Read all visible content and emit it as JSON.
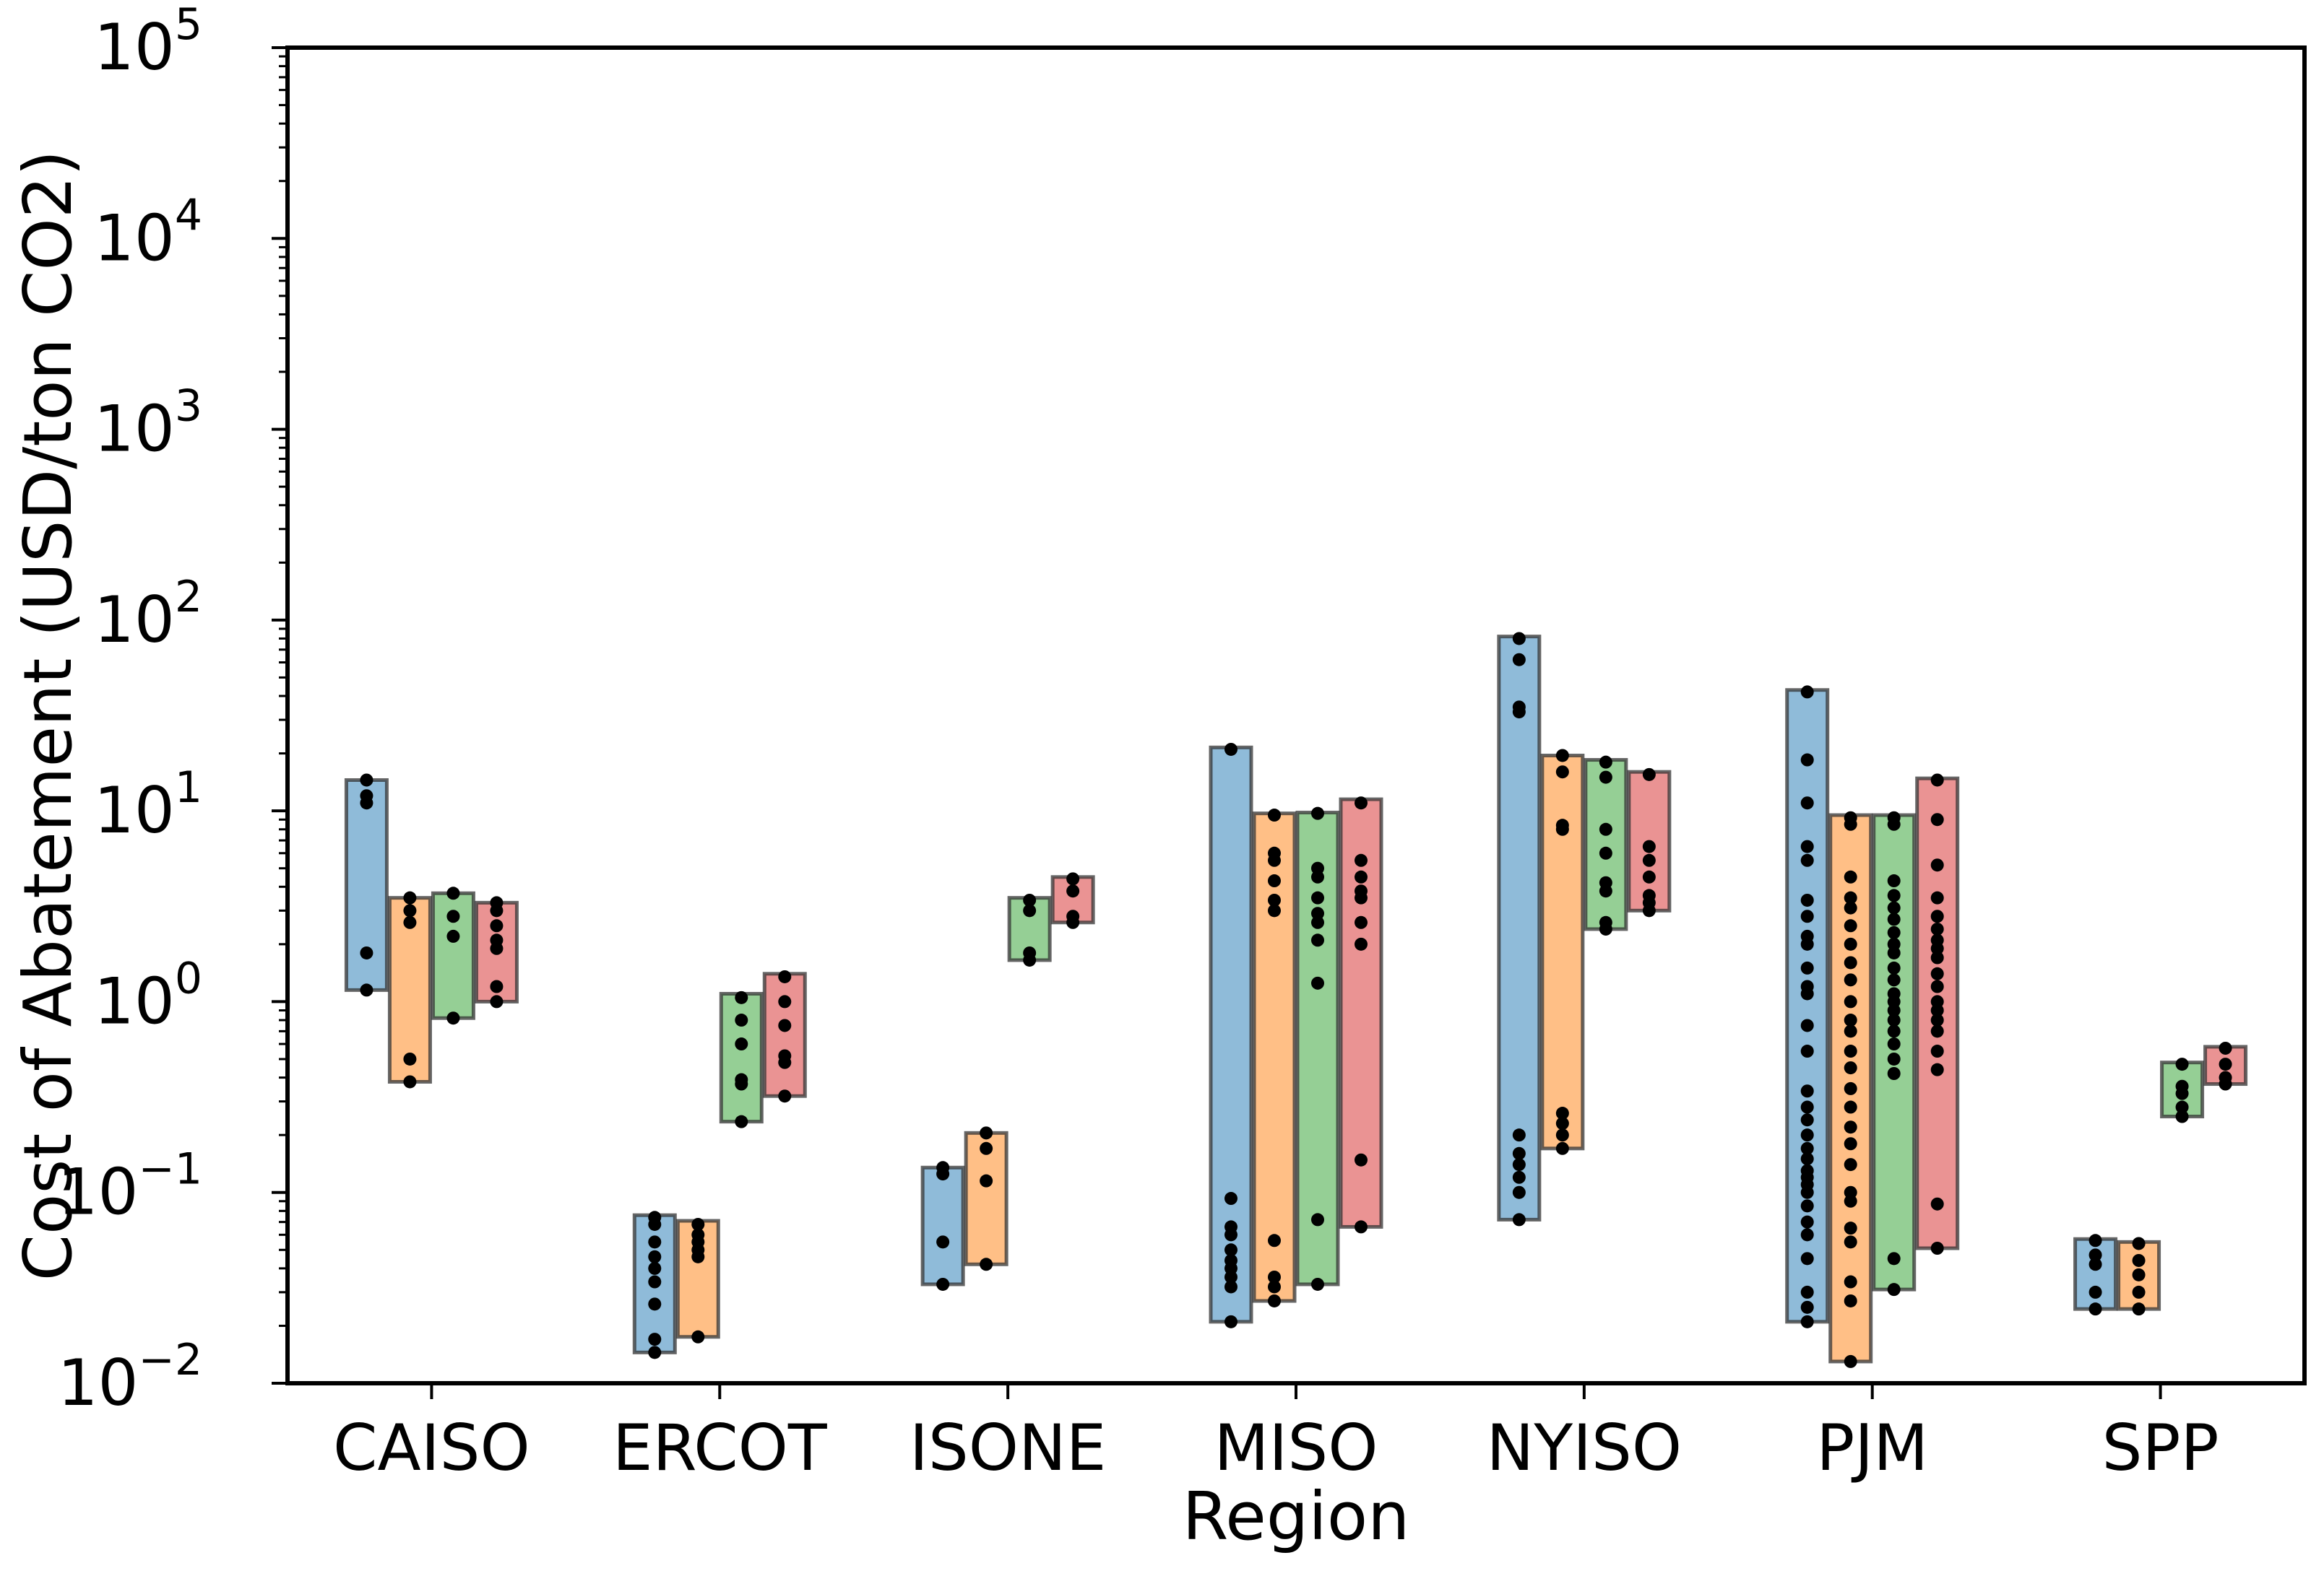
{
  "chart_data": {
    "type": "range-bar-strip",
    "title": "",
    "xlabel": "Region",
    "ylabel": "Cost of Abatement (USD/ton CO2)",
    "yscale": "log",
    "ylim": [
      0.01,
      100000
    ],
    "yticks": [
      {
        "base": "10",
        "exp": "−2",
        "value": 0.01
      },
      {
        "base": "10",
        "exp": "−1",
        "value": 0.1
      },
      {
        "base": "10",
        "exp": "0",
        "value": 1
      },
      {
        "base": "10",
        "exp": "1",
        "value": 10
      },
      {
        "base": "10",
        "exp": "2",
        "value": 100
      },
      {
        "base": "10",
        "exp": "3",
        "value": 1000
      },
      {
        "base": "10",
        "exp": "4",
        "value": 10000
      },
      {
        "base": "10",
        "exp": "5",
        "value": 100000
      }
    ],
    "grid": false,
    "series_colors": [
      "#1f77b4",
      "#ff7f0e",
      "#2ca02c",
      "#d62728"
    ],
    "categories": [
      "CAISO",
      "ERCOT",
      "ISONE",
      "MISO",
      "NYISO",
      "PJM",
      "SPP"
    ],
    "groups": [
      {
        "region": "CAISO",
        "bars": [
          {
            "series": 0,
            "min": 1.15,
            "max": 14.5,
            "points": [
              1.15,
              1.8,
              11,
              12,
              14.5
            ]
          },
          {
            "series": 1,
            "min": 0.38,
            "max": 3.5,
            "points": [
              0.38,
              0.5,
              2.6,
              3.0,
              3.5
            ]
          },
          {
            "series": 2,
            "min": 0.82,
            "max": 3.7,
            "points": [
              0.82,
              2.2,
              2.8,
              3.7
            ]
          },
          {
            "series": 3,
            "min": 1.0,
            "max": 3.3,
            "points": [
              1.0,
              1.2,
              1.9,
              2.1,
              2.5,
              3.0,
              3.3
            ]
          }
        ]
      },
      {
        "region": "ERCOT",
        "bars": [
          {
            "series": 0,
            "min": 0.0145,
            "max": 0.076,
            "points": [
              0.0145,
              0.017,
              0.026,
              0.034,
              0.04,
              0.046,
              0.055,
              0.068,
              0.074
            ]
          },
          {
            "series": 1,
            "min": 0.0175,
            "max": 0.071,
            "points": [
              0.0175,
              0.046,
              0.05,
              0.055,
              0.06,
              0.068
            ]
          },
          {
            "series": 2,
            "min": 0.235,
            "max": 1.1,
            "points": [
              0.235,
              0.37,
              0.39,
              0.6,
              0.8,
              1.05
            ]
          },
          {
            "series": 3,
            "min": 0.32,
            "max": 1.4,
            "points": [
              0.32,
              0.48,
              0.52,
              0.75,
              1.0,
              1.35
            ]
          }
        ]
      },
      {
        "region": "ISONE",
        "bars": [
          {
            "series": 0,
            "min": 0.033,
            "max": 0.135,
            "points": [
              0.033,
              0.055,
              0.125,
              0.135
            ]
          },
          {
            "series": 1,
            "min": 0.042,
            "max": 0.205,
            "points": [
              0.042,
              0.115,
              0.17,
              0.205
            ]
          },
          {
            "series": 2,
            "min": 1.65,
            "max": 3.5,
            "points": [
              1.65,
              1.8,
              3.0,
              3.4
            ]
          },
          {
            "series": 3,
            "min": 2.6,
            "max": 4.5,
            "points": [
              2.6,
              2.8,
              3.8,
              4.4
            ]
          }
        ]
      },
      {
        "region": "MISO",
        "bars": [
          {
            "series": 0,
            "min": 0.021,
            "max": 21.5,
            "points": [
              0.021,
              0.032,
              0.036,
              0.04,
              0.044,
              0.05,
              0.06,
              0.066,
              0.093,
              21.0
            ]
          },
          {
            "series": 1,
            "min": 0.027,
            "max": 9.7,
            "points": [
              0.027,
              0.032,
              0.036,
              0.056,
              3.0,
              3.4,
              4.3,
              5.5,
              6.0,
              9.5
            ]
          },
          {
            "series": 2,
            "min": 0.033,
            "max": 9.8,
            "points": [
              0.033,
              0.072,
              1.25,
              2.1,
              2.6,
              2.9,
              3.5,
              4.5,
              5.0,
              9.7
            ]
          },
          {
            "series": 3,
            "min": 0.066,
            "max": 11.5,
            "points": [
              0.066,
              0.148,
              2.0,
              2.6,
              3.5,
              3.8,
              4.5,
              5.5,
              11.0
            ]
          }
        ]
      },
      {
        "region": "NYISO",
        "bars": [
          {
            "series": 0,
            "min": 0.072,
            "max": 82,
            "points": [
              0.072,
              0.1,
              0.12,
              0.14,
              0.16,
              0.2,
              33,
              35,
              62,
              80
            ]
          },
          {
            "series": 1,
            "min": 0.17,
            "max": 19.5,
            "points": [
              0.17,
              0.2,
              0.23,
              0.26,
              8.0,
              8.4,
              16,
              19.5
            ]
          },
          {
            "series": 2,
            "min": 2.4,
            "max": 18.5,
            "points": [
              2.4,
              2.6,
              3.8,
              4.2,
              6.0,
              8.0,
              15,
              18
            ]
          },
          {
            "series": 3,
            "min": 3.0,
            "max": 16,
            "points": [
              3.0,
              3.3,
              3.6,
              4.5,
              5.5,
              6.5,
              15.5
            ]
          }
        ]
      },
      {
        "region": "PJM",
        "bars": [
          {
            "series": 0,
            "min": 0.021,
            "max": 43,
            "points": [
              0.021,
              0.025,
              0.03,
              0.045,
              0.06,
              0.07,
              0.085,
              0.1,
              0.11,
              0.12,
              0.13,
              0.15,
              0.17,
              0.2,
              0.24,
              0.28,
              0.34,
              0.55,
              0.75,
              1.1,
              1.2,
              1.5,
              2.0,
              2.2,
              2.8,
              3.4,
              5.5,
              6.5,
              11,
              18.5,
              42
            ]
          },
          {
            "series": 1,
            "min": 0.013,
            "max": 9.5,
            "points": [
              0.013,
              0.027,
              0.034,
              0.055,
              0.065,
              0.09,
              0.1,
              0.14,
              0.18,
              0.22,
              0.28,
              0.35,
              0.45,
              0.55,
              0.7,
              0.8,
              1.0,
              1.3,
              1.6,
              2.0,
              2.5,
              3.1,
              3.5,
              4.5,
              8.5,
              9.2
            ]
          },
          {
            "series": 2,
            "min": 0.031,
            "max": 9.5,
            "points": [
              0.031,
              0.045,
              0.42,
              0.5,
              0.6,
              0.7,
              0.8,
              0.9,
              1.0,
              1.1,
              1.3,
              1.5,
              1.8,
              2.0,
              2.3,
              2.7,
              3.1,
              3.6,
              4.3,
              8.5,
              9.2
            ]
          },
          {
            "series": 3,
            "min": 0.051,
            "max": 14.8,
            "points": [
              0.051,
              0.087,
              0.44,
              0.55,
              0.7,
              0.8,
              0.9,
              1.0,
              1.2,
              1.4,
              1.7,
              1.9,
              2.1,
              2.4,
              2.8,
              3.5,
              5.2,
              9.0,
              14.5
            ]
          }
        ]
      },
      {
        "region": "SPP",
        "bars": [
          {
            "series": 0,
            "min": 0.0245,
            "max": 0.057,
            "points": [
              0.0245,
              0.03,
              0.042,
              0.047,
              0.056
            ]
          },
          {
            "series": 1,
            "min": 0.0245,
            "max": 0.055,
            "points": [
              0.0245,
              0.03,
              0.037,
              0.044,
              0.054
            ]
          },
          {
            "series": 2,
            "min": 0.25,
            "max": 0.48,
            "points": [
              0.25,
              0.28,
              0.33,
              0.36,
              0.47
            ]
          },
          {
            "series": 3,
            "min": 0.37,
            "max": 0.58,
            "points": [
              0.37,
              0.4,
              0.47,
              0.57
            ]
          }
        ]
      }
    ]
  }
}
